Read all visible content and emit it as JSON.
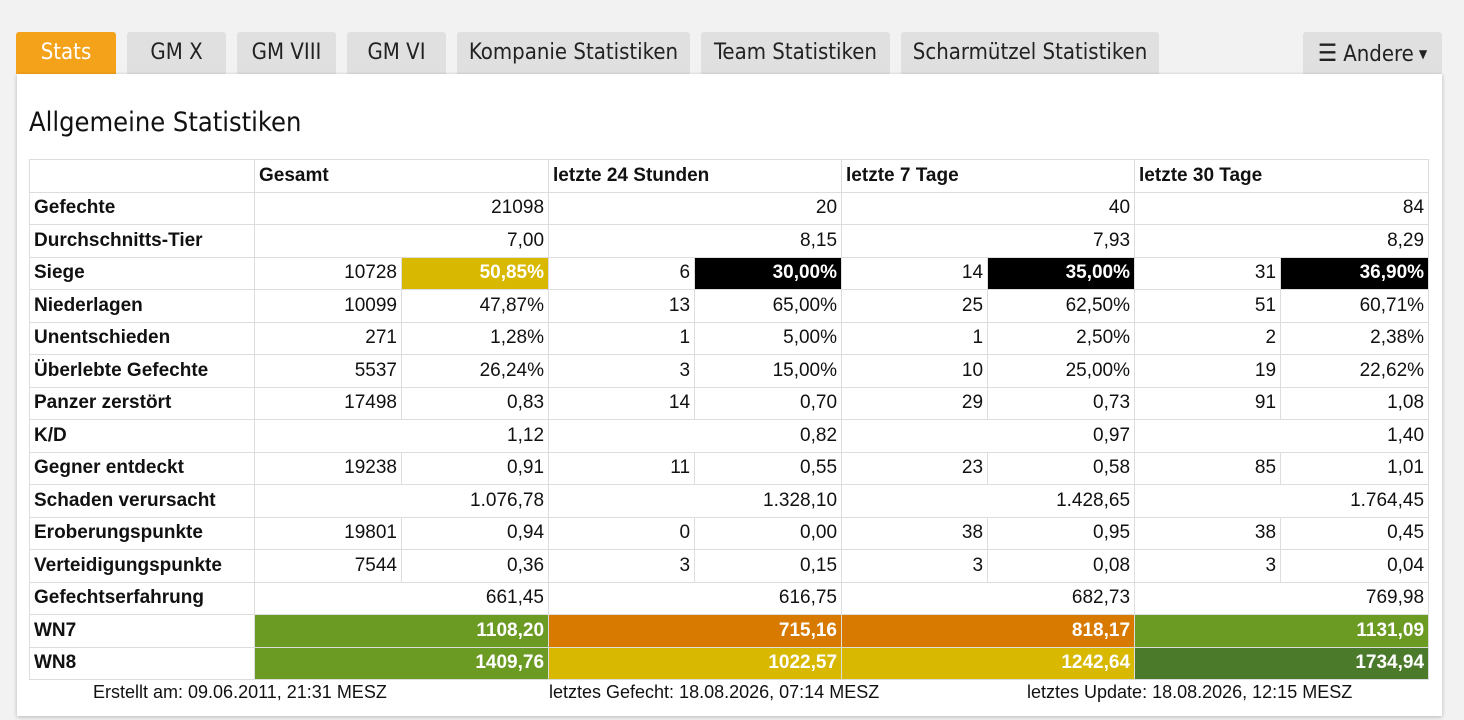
{
  "tabs": [
    "Stats",
    "GM X",
    "GM VIII",
    "GM VI",
    "Kompanie Statistiken",
    "Team Statistiken",
    "Scharmützel Statistiken"
  ],
  "menu": {
    "label": "Andere",
    "icon": "hamburger-icon"
  },
  "panel": {
    "title": "Allgemeine Statistiken"
  },
  "table": {
    "headers": [
      "Gesamt",
      "letzte 24 Stunden",
      "letzte 7 Tage",
      "letzte 30 Tage"
    ],
    "rows": {
      "gefechte": {
        "label": "Gefechte",
        "values": [
          "21098",
          "20",
          "40",
          "84"
        ]
      },
      "tier": {
        "label": "Durchschnitts-Tier",
        "values": [
          "7,00",
          "8,15",
          "7,93",
          "8,29"
        ]
      },
      "siege": {
        "label": "Siege",
        "values": [
          "10728",
          "50,85%",
          "6",
          "30,00%",
          "14",
          "35,00%",
          "31",
          "36,90%"
        ]
      },
      "niederlagen": {
        "label": "Niederlagen",
        "values": [
          "10099",
          "47,87%",
          "13",
          "65,00%",
          "25",
          "62,50%",
          "51",
          "60,71%"
        ]
      },
      "unentschieden": {
        "label": "Unentschieden",
        "values": [
          "271",
          "1,28%",
          "1",
          "5,00%",
          "1",
          "2,50%",
          "2",
          "2,38%"
        ]
      },
      "ueberlebt": {
        "label": "Überlebte Gefechte",
        "values": [
          "5537",
          "26,24%",
          "3",
          "15,00%",
          "10",
          "25,00%",
          "19",
          "22,62%"
        ]
      },
      "zerstoert": {
        "label": "Panzer zerstört",
        "values": [
          "17498",
          "0,83",
          "14",
          "0,70",
          "29",
          "0,73",
          "91",
          "1,08"
        ]
      },
      "kd": {
        "label": "K/D",
        "values": [
          "1,12",
          "0,82",
          "0,97",
          "1,40"
        ]
      },
      "entdeckt": {
        "label": "Gegner entdeckt",
        "values": [
          "19238",
          "0,91",
          "11",
          "0,55",
          "23",
          "0,58",
          "85",
          "1,01"
        ]
      },
      "schaden": {
        "label": "Schaden verursacht",
        "values": [
          "1.076,78",
          "1.328,10",
          "1.428,65",
          "1.764,45"
        ]
      },
      "eroberung": {
        "label": "Eroberungspunkte",
        "values": [
          "19801",
          "0,94",
          "0",
          "0,00",
          "38",
          "0,95",
          "38",
          "0,45"
        ]
      },
      "verteidigung": {
        "label": "Verteidigungspunkte",
        "values": [
          "7544",
          "0,36",
          "3",
          "0,15",
          "3",
          "0,08",
          "3",
          "0,04"
        ]
      },
      "erfahrung": {
        "label": "Gefechtserfahrung",
        "values": [
          "661,45",
          "616,75",
          "682,73",
          "769,98"
        ]
      },
      "wn7": {
        "label": "WN7",
        "values": [
          "1108,20",
          "715,16",
          "818,17",
          "1131,09"
        ]
      },
      "wn8": {
        "label": "WN8",
        "values": [
          "1409,76",
          "1022,57",
          "1242,64",
          "1734,94"
        ]
      }
    }
  },
  "colors": {
    "active_tab": "#f5a21b",
    "win_black": "#000000",
    "yellow": "#d8b800",
    "green": "#6c9b24",
    "orange": "#d97a00",
    "dark_green": "#4b7a2b"
  },
  "footer": {
    "created": "Erstellt am: 09.06.2011, 21:31 MESZ",
    "last_battle": "letztes Gefecht: 18.08.2026, 07:14 MESZ",
    "last_update": "letztes Update: 18.08.2026, 12:15 MESZ"
  }
}
